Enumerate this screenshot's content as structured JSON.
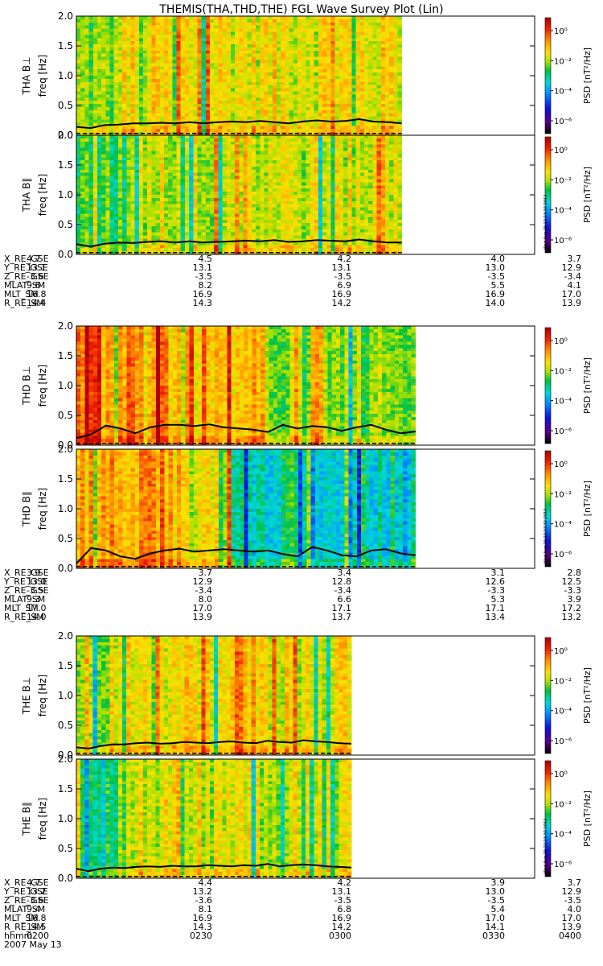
{
  "title": "THEMIS(THA,THD,THE) FGL Wave Survey Plot (Lin)",
  "stamp": "Wed Aug 29 22:23:32 2012",
  "colors": {
    "line": "#000000",
    "axis": "#000000"
  },
  "chart_data": {
    "type": "heatmap",
    "freq_ylabel": "freq [Hz]",
    "ylim": [
      0,
      2.0
    ],
    "yticks": [
      "0.0",
      "0.5",
      "1.0",
      "1.5",
      "2.0"
    ],
    "colorbar": {
      "label": "PSD [nT²/Hz]",
      "ticks": [
        "10⁰",
        "10⁻²",
        "10⁻⁴",
        "10⁻⁶"
      ],
      "range_log10": [
        -7,
        1
      ]
    },
    "time_axis": {
      "label": "hhmm",
      "date": "2007 May 13",
      "ticks": [
        "0200",
        "0230",
        "0300",
        "0330",
        "0400"
      ]
    },
    "groups": [
      {
        "probe": "THA",
        "data_end_fraction": 0.71,
        "panels": [
          {
            "ylabel": "THA B⊥",
            "level": "mid",
            "line": [
              0.14,
              0.12,
              0.17,
              0.18,
              0.2,
              0.2,
              0.21,
              0.2,
              0.22,
              0.2,
              0.22,
              0.23,
              0.22,
              0.24,
              0.22,
              0.2,
              0.23,
              0.25,
              0.23,
              0.24,
              0.27,
              0.23,
              0.22,
              0.2
            ]
          },
          {
            "ylabel": "THA B∥",
            "level": "low",
            "line": [
              0.17,
              0.13,
              0.18,
              0.2,
              0.19,
              0.21,
              0.22,
              0.2,
              0.22,
              0.2,
              0.21,
              0.22,
              0.23,
              0.22,
              0.24,
              0.21,
              0.22,
              0.24,
              0.23,
              0.22,
              0.25,
              0.22,
              0.2,
              0.2
            ]
          }
        ],
        "ephemeris": {
          "labels": [
            "X_RE_GSE",
            "Y_RE_GSE",
            "Z_RE_GSE",
            "MLAT_SM",
            "MLT_SM",
            "R_RE_SM"
          ],
          "values": [
            [
              "4.7",
              "4.5",
              "4.2",
              "4.0",
              "3.7"
            ],
            [
              "13.1",
              "13.1",
              "13.1",
              "13.0",
              "12.9"
            ],
            [
              "-3.6",
              "-3.5",
              "-3.5",
              "-3.5",
              "-3.4"
            ],
            [
              "9.6",
              "8.2",
              "6.9",
              "5.5",
              "4.1"
            ],
            [
              "16.8",
              "16.9",
              "16.9",
              "16.9",
              "17.0"
            ],
            [
              "14.4",
              "14.3",
              "14.2",
              "14.0",
              "13.9"
            ]
          ]
        }
      },
      {
        "probe": "THD",
        "data_end_fraction": 0.74,
        "panels": [
          {
            "ylabel": "THD B⊥",
            "level": "high",
            "line": [
              0.12,
              0.18,
              0.33,
              0.28,
              0.2,
              0.3,
              0.34,
              0.34,
              0.32,
              0.35,
              0.3,
              0.28,
              0.26,
              0.22,
              0.34,
              0.28,
              0.32,
              0.3,
              0.24,
              0.3,
              0.34,
              0.26,
              0.2,
              0.23
            ]
          },
          {
            "ylabel": "THD B∥",
            "level": "mixed",
            "line": [
              0.08,
              0.34,
              0.3,
              0.2,
              0.16,
              0.25,
              0.3,
              0.33,
              0.28,
              0.3,
              0.32,
              0.3,
              0.28,
              0.3,
              0.24,
              0.2,
              0.36,
              0.3,
              0.22,
              0.2,
              0.3,
              0.32,
              0.25,
              0.22
            ]
          }
        ],
        "ephemeris": {
          "labels": [
            "X_RE_GSE",
            "Y_RE_GSE",
            "Z_RE_GSE",
            "MLAT_SM",
            "MLT_SM",
            "R_RE_SM"
          ],
          "values": [
            [
              "3.9",
              "3.7",
              "3.4",
              "3.1",
              "2.8"
            ],
            [
              "13.0",
              "12.9",
              "12.8",
              "12.6",
              "12.5"
            ],
            [
              "-3.5",
              "-3.4",
              "-3.4",
              "-3.3",
              "-3.3"
            ],
            [
              "9.3",
              "8.0",
              "6.6",
              "5.3",
              "3.9"
            ],
            [
              "17.0",
              "17.0",
              "17.1",
              "17.1",
              "17.2"
            ],
            [
              "14.0",
              "13.9",
              "13.7",
              "13.4",
              "13.2"
            ]
          ]
        }
      },
      {
        "probe": "THE",
        "data_end_fraction": 0.6,
        "panels": [
          {
            "ylabel": "THE B⊥",
            "level": "mid",
            "line": [
              0.13,
              0.11,
              0.15,
              0.18,
              0.18,
              0.2,
              0.21,
              0.19,
              0.2,
              0.22,
              0.21,
              0.2,
              0.22,
              0.23,
              0.21,
              0.2,
              0.24,
              0.22,
              0.21,
              0.25,
              0.23,
              0.22,
              0.2,
              0.19
            ]
          },
          {
            "ylabel": "THE B∥",
            "level": "low",
            "line": [
              0.16,
              0.12,
              0.16,
              0.18,
              0.17,
              0.19,
              0.2,
              0.19,
              0.21,
              0.2,
              0.2,
              0.22,
              0.21,
              0.2,
              0.22,
              0.21,
              0.24,
              0.2,
              0.22,
              0.23,
              0.22,
              0.2,
              0.19,
              0.18
            ]
          }
        ],
        "ephemeris": {
          "labels": [
            "X_RE_GSE",
            "Y_RE_GSE",
            "Z_RE_GSE",
            "MLAT_SM",
            "MLT_SM",
            "R_RE_SM"
          ],
          "values": [
            [
              "4.7",
              "4.4",
              "4.2",
              "3.9",
              "3.7"
            ],
            [
              "13.2",
              "13.2",
              "13.1",
              "13.0",
              "12.9"
            ],
            [
              "-3.6",
              "-3.6",
              "-3.5",
              "-3.5",
              "-3.5"
            ],
            [
              "9.4",
              "8.1",
              "6.8",
              "5.4",
              "4.0"
            ],
            [
              "16.8",
              "16.9",
              "16.9",
              "17.0",
              "17.0"
            ],
            [
              "14.5",
              "14.3",
              "14.2",
              "14.1",
              "13.9"
            ]
          ]
        }
      }
    ]
  }
}
